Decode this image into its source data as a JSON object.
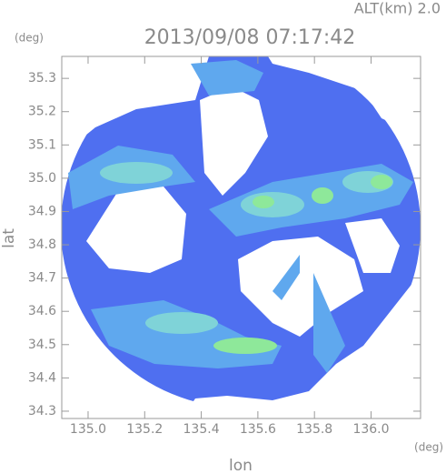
{
  "chart_data": {
    "type": "radar-map",
    "title": "2013/09/08 07:17:42",
    "annotation": "ALT(km) 2.0",
    "x_label": "lon",
    "y_label": "lat",
    "x_unit": "(deg)",
    "y_unit": "(deg)",
    "xlim": [
      134.907,
      136.175
    ],
    "ylim": [
      34.278,
      35.366
    ],
    "xticks": [
      {
        "value": 135,
        "label": "135.0"
      },
      135.2,
      135.4,
      135.6,
      135.8,
      {
        "value": 136,
        "label": "136.0"
      }
    ],
    "yticks": [
      34.3,
      34.4,
      34.5,
      34.6,
      34.7,
      34.8,
      34.9,
      {
        "value": 35,
        "label": "35.0"
      },
      35.1,
      35.2,
      35.3
    ]
  }
}
